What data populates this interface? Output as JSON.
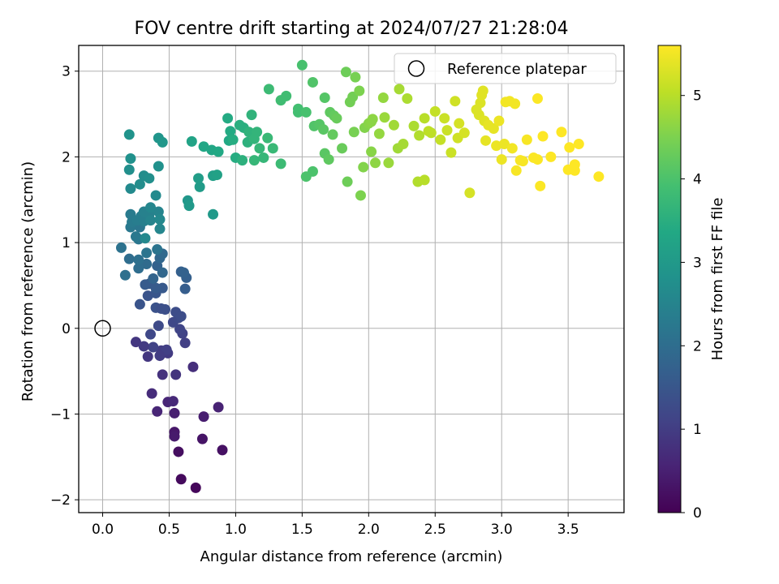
{
  "chart_data": {
    "type": "scatter",
    "title": "FOV centre drift starting at 2024/07/27 21:28:04",
    "xlabel": "Angular distance from reference (arcmin)",
    "ylabel": "Rotation from reference (arcmin)",
    "xlim": [
      -0.18,
      3.92
    ],
    "ylim": [
      -2.15,
      3.3
    ],
    "xticks": [
      "0.0",
      "0.5",
      "1.0",
      "1.5",
      "2.0",
      "2.5",
      "3.0",
      "3.5"
    ],
    "yticks": [
      "−2",
      "−1",
      "0",
      "1",
      "2",
      "3"
    ],
    "grid": true,
    "legend": {
      "placement": "top-right",
      "entries": [
        {
          "label": "Reference platepar"
        }
      ]
    },
    "reference_point": {
      "x": 0,
      "y": 0
    },
    "colorbar": {
      "label": "Hours from first FF file",
      "range": [
        0,
        5.6
      ],
      "ticks": [
        "0",
        "1",
        "2",
        "3",
        "4",
        "5"
      ],
      "colormap": "viridis"
    },
    "series": [
      {
        "points": [
          [
            0.7,
            -1.86,
            0.1
          ],
          [
            0.59,
            -1.76,
            0.15
          ],
          [
            0.57,
            -1.44,
            0.2
          ],
          [
            0.75,
            -1.29,
            0.3
          ],
          [
            0.9,
            -1.42,
            0.25
          ],
          [
            0.54,
            -1.21,
            0.35
          ],
          [
            0.54,
            -1.26,
            0.4
          ],
          [
            0.76,
            -1.03,
            0.45
          ],
          [
            0.54,
            -0.99,
            0.5
          ],
          [
            0.87,
            -0.92,
            0.55
          ],
          [
            0.41,
            -0.97,
            0.6
          ],
          [
            0.49,
            -0.86,
            0.6
          ],
          [
            0.53,
            -0.85,
            0.65
          ],
          [
            0.37,
            -0.76,
            0.7
          ],
          [
            0.68,
            -0.45,
            0.75
          ],
          [
            0.45,
            -0.54,
            0.8
          ],
          [
            0.55,
            -0.54,
            0.85
          ],
          [
            0.34,
            -0.33,
            0.9
          ],
          [
            0.49,
            -0.29,
            0.95
          ],
          [
            0.44,
            -0.26,
            1.0
          ],
          [
            0.48,
            -0.25,
            1.05
          ],
          [
            0.43,
            -0.32,
            1.0
          ],
          [
            0.38,
            -0.22,
            1.1
          ],
          [
            0.25,
            -0.16,
            0.9
          ],
          [
            0.31,
            -0.21,
            0.95
          ],
          [
            0.62,
            -0.17,
            1.05
          ],
          [
            0.6,
            -0.06,
            1.1
          ],
          [
            0.58,
            -0.01,
            1.15
          ],
          [
            0.36,
            -0.07,
            1.2
          ],
          [
            0.42,
            0.03,
            1.25
          ],
          [
            0.53,
            0.07,
            1.2
          ],
          [
            0.57,
            0.12,
            1.25
          ],
          [
            0.55,
            0.19,
            1.3
          ],
          [
            0.59,
            0.14,
            1.3
          ],
          [
            0.47,
            0.22,
            1.35
          ],
          [
            0.4,
            0.24,
            1.4
          ],
          [
            0.44,
            0.23,
            1.35
          ],
          [
            0.28,
            0.28,
            1.45
          ],
          [
            0.34,
            0.38,
            1.45
          ],
          [
            0.4,
            0.41,
            1.5
          ],
          [
            0.35,
            0.52,
            1.55
          ],
          [
            0.45,
            0.47,
            1.55
          ],
          [
            0.4,
            0.47,
            1.6
          ],
          [
            0.32,
            0.51,
            1.6
          ],
          [
            0.62,
            0.46,
            1.65
          ],
          [
            0.63,
            0.59,
            1.7
          ],
          [
            0.59,
            0.66,
            1.7
          ],
          [
            0.61,
            0.65,
            1.75
          ],
          [
            0.41,
            0.73,
            1.75
          ],
          [
            0.38,
            0.58,
            1.8
          ],
          [
            0.45,
            0.65,
            1.85
          ],
          [
            0.43,
            0.82,
            1.85
          ],
          [
            0.45,
            0.87,
            1.9
          ],
          [
            0.33,
            0.75,
            1.95
          ],
          [
            0.27,
            0.7,
            2.0
          ],
          [
            0.2,
            0.81,
            2.0
          ],
          [
            0.27,
            0.8,
            2.05
          ],
          [
            0.17,
            0.62,
            2.05
          ],
          [
            0.14,
            0.94,
            2.1
          ],
          [
            0.33,
            0.88,
            2.15
          ],
          [
            0.41,
            0.92,
            2.15
          ],
          [
            0.27,
            1.04,
            2.2
          ],
          [
            0.28,
            1.18,
            2.2
          ],
          [
            0.21,
            1.18,
            2.25
          ],
          [
            0.25,
            1.07,
            2.25
          ],
          [
            0.22,
            1.24,
            2.3
          ],
          [
            0.21,
            1.33,
            2.3
          ],
          [
            0.26,
            1.26,
            2.35
          ],
          [
            0.29,
            1.31,
            2.35
          ],
          [
            0.31,
            1.25,
            2.4
          ],
          [
            0.31,
            1.36,
            2.45
          ],
          [
            0.35,
            1.33,
            2.45
          ],
          [
            0.36,
            1.26,
            2.5
          ],
          [
            0.42,
            1.36,
            2.5
          ],
          [
            0.36,
            1.41,
            2.55
          ],
          [
            0.43,
            1.16,
            2.55
          ],
          [
            0.32,
            1.05,
            2.6
          ],
          [
            0.43,
            1.27,
            2.6
          ],
          [
            0.4,
            1.55,
            2.65
          ],
          [
            0.21,
            1.63,
            2.65
          ],
          [
            0.28,
            1.68,
            2.7
          ],
          [
            0.31,
            1.78,
            2.7
          ],
          [
            0.35,
            1.75,
            2.75
          ],
          [
            0.2,
            1.85,
            2.75
          ],
          [
            0.21,
            1.98,
            2.8
          ],
          [
            0.42,
            1.89,
            2.8
          ],
          [
            0.2,
            2.26,
            2.85
          ],
          [
            0.42,
            2.22,
            2.9
          ],
          [
            0.45,
            2.17,
            2.95
          ],
          [
            0.64,
            1.49,
            2.95
          ],
          [
            0.65,
            1.43,
            3.0
          ],
          [
            0.83,
            1.33,
            3.0
          ],
          [
            0.73,
            1.65,
            3.05
          ],
          [
            0.72,
            1.75,
            3.1
          ],
          [
            0.83,
            1.78,
            3.15
          ],
          [
            0.86,
            1.79,
            3.2
          ],
          [
            0.67,
            2.18,
            3.25
          ],
          [
            0.76,
            2.12,
            3.3
          ],
          [
            0.82,
            2.08,
            3.3
          ],
          [
            0.87,
            2.06,
            3.35
          ],
          [
            0.95,
            2.19,
            3.35
          ],
          [
            0.96,
            2.3,
            3.4
          ],
          [
            0.94,
            2.45,
            3.4
          ],
          [
            1.0,
            1.99,
            3.45
          ],
          [
            0.98,
            2.2,
            3.45
          ],
          [
            1.06,
            2.34,
            3.5
          ],
          [
            1.03,
            2.37,
            3.5
          ],
          [
            1.05,
            1.96,
            3.55
          ],
          [
            1.09,
            2.17,
            3.55
          ],
          [
            1.1,
            2.29,
            3.6
          ],
          [
            1.12,
            2.49,
            3.6
          ],
          [
            1.14,
            2.21,
            3.65
          ],
          [
            1.16,
            2.29,
            3.65
          ],
          [
            1.14,
            1.96,
            3.7
          ],
          [
            1.18,
            2.1,
            3.7
          ],
          [
            1.21,
            1.99,
            3.7
          ],
          [
            1.24,
            2.22,
            3.75
          ],
          [
            1.28,
            2.1,
            3.75
          ],
          [
            1.25,
            2.79,
            3.8
          ],
          [
            1.34,
            1.92,
            3.8
          ],
          [
            1.34,
            2.66,
            3.85
          ],
          [
            1.38,
            2.71,
            3.85
          ],
          [
            1.47,
            2.52,
            3.9
          ],
          [
            1.47,
            2.56,
            3.9
          ],
          [
            1.5,
            3.07,
            3.95
          ],
          [
            1.53,
            2.52,
            3.95
          ],
          [
            1.53,
            1.77,
            4.0
          ],
          [
            1.58,
            1.83,
            4.0
          ],
          [
            1.58,
            2.87,
            4.05
          ],
          [
            1.59,
            2.36,
            4.05
          ],
          [
            1.63,
            2.38,
            4.1
          ],
          [
            1.67,
            2.69,
            4.1
          ],
          [
            1.66,
            2.32,
            4.15
          ],
          [
            1.67,
            2.04,
            4.15
          ],
          [
            1.7,
            1.97,
            4.2
          ],
          [
            1.71,
            2.52,
            4.2
          ],
          [
            1.73,
            2.26,
            4.25
          ],
          [
            1.74,
            2.48,
            4.25
          ],
          [
            1.76,
            2.45,
            4.3
          ],
          [
            1.8,
            2.1,
            4.3
          ],
          [
            1.83,
            2.99,
            4.35
          ],
          [
            1.84,
            1.71,
            4.35
          ],
          [
            1.86,
            2.64,
            4.4
          ],
          [
            1.88,
            2.7,
            4.4
          ],
          [
            1.9,
            2.93,
            4.45
          ],
          [
            1.89,
            2.29,
            4.45
          ],
          [
            1.93,
            2.77,
            4.5
          ],
          [
            1.94,
            1.55,
            4.5
          ],
          [
            1.96,
            1.88,
            4.55
          ],
          [
            1.97,
            2.34,
            4.55
          ],
          [
            2.0,
            2.39,
            4.6
          ],
          [
            2.02,
            2.06,
            4.6
          ],
          [
            2.03,
            2.44,
            4.65
          ],
          [
            2.05,
            1.93,
            4.65
          ],
          [
            2.08,
            2.27,
            4.7
          ],
          [
            2.11,
            2.69,
            4.7
          ],
          [
            2.12,
            2.46,
            4.75
          ],
          [
            2.15,
            1.93,
            4.75
          ],
          [
            2.19,
            2.37,
            4.8
          ],
          [
            2.22,
            2.1,
            4.8
          ],
          [
            2.23,
            2.79,
            4.85
          ],
          [
            2.26,
            2.15,
            4.85
          ],
          [
            2.29,
            2.68,
            4.9
          ],
          [
            2.34,
            2.36,
            4.9
          ],
          [
            2.37,
            1.71,
            4.95
          ],
          [
            2.38,
            2.25,
            4.95
          ],
          [
            2.42,
            2.45,
            5.0
          ],
          [
            2.42,
            1.73,
            5.0
          ],
          [
            2.45,
            2.3,
            5.05
          ],
          [
            2.47,
            2.28,
            5.05
          ],
          [
            2.5,
            2.53,
            5.1
          ],
          [
            2.54,
            2.2,
            5.1
          ],
          [
            2.57,
            2.45,
            5.15
          ],
          [
            2.59,
            2.31,
            5.15
          ],
          [
            2.62,
            2.05,
            5.15
          ],
          [
            2.65,
            2.65,
            5.2
          ],
          [
            2.67,
            2.22,
            5.2
          ],
          [
            2.68,
            2.39,
            5.25
          ],
          [
            2.72,
            2.28,
            5.25
          ],
          [
            2.76,
            1.58,
            5.25
          ],
          [
            2.81,
            2.55,
            5.3
          ],
          [
            2.83,
            2.49,
            5.3
          ],
          [
            2.84,
            2.63,
            5.3
          ],
          [
            2.85,
            2.72,
            5.35
          ],
          [
            2.86,
            2.77,
            5.35
          ],
          [
            2.87,
            2.42,
            5.35
          ],
          [
            2.88,
            2.19,
            5.4
          ],
          [
            2.9,
            2.37,
            5.4
          ],
          [
            2.94,
            2.33,
            5.4
          ],
          [
            2.96,
            2.13,
            5.45
          ],
          [
            2.98,
            2.42,
            5.45
          ],
          [
            3.0,
            1.97,
            5.45
          ],
          [
            3.02,
            2.15,
            5.45
          ],
          [
            3.03,
            2.64,
            5.5
          ],
          [
            3.06,
            2.65,
            5.5
          ],
          [
            3.08,
            2.1,
            5.5
          ],
          [
            3.1,
            2.62,
            5.5
          ],
          [
            3.11,
            1.84,
            5.55
          ],
          [
            3.14,
            1.96,
            5.55
          ],
          [
            3.16,
            1.95,
            5.55
          ],
          [
            3.19,
            2.2,
            5.55
          ],
          [
            3.24,
            1.99,
            5.58
          ],
          [
            3.27,
            1.97,
            5.58
          ],
          [
            3.27,
            2.68,
            5.58
          ],
          [
            3.29,
            1.66,
            5.58
          ],
          [
            3.31,
            2.24,
            5.6
          ],
          [
            3.37,
            2.0,
            5.6
          ],
          [
            3.45,
            2.29,
            5.6
          ],
          [
            3.5,
            1.85,
            5.6
          ],
          [
            3.51,
            2.11,
            5.6
          ],
          [
            3.55,
            1.84,
            5.6
          ],
          [
            3.55,
            1.91,
            5.6
          ],
          [
            3.58,
            2.15,
            5.6
          ],
          [
            3.73,
            1.77,
            5.6
          ],
          [
            2.02,
            2.41,
            4.62
          ]
        ]
      }
    ]
  }
}
